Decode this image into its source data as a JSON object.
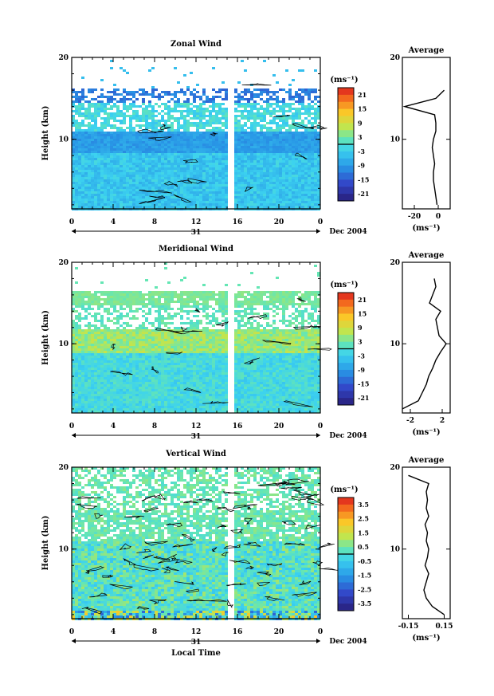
{
  "date_label": "Dec 2004",
  "day_label": "31",
  "xlabel_bottom": "Local Time",
  "chart_data": [
    {
      "type": "heatmap",
      "title": "Zonal Wind",
      "ylabel": "Height (km)",
      "xlabel": "Local Time",
      "xlim": [
        0,
        24
      ],
      "ylim": [
        1.5,
        20
      ],
      "xticks": [
        "0",
        "4",
        "8",
        "12",
        "16",
        "20",
        "0"
      ],
      "yticks": [
        "10",
        "20"
      ],
      "colorbar": {
        "unit": "(ms⁻¹)",
        "range": [
          -24,
          24
        ],
        "ticks": [
          "21",
          "15",
          "9",
          "3",
          "-3",
          "-9",
          "-15",
          "-21"
        ]
      },
      "average": {
        "title": "Average",
        "xlabel": "(ms⁻¹)",
        "xlim": [
          -30,
          10
        ],
        "xticks": [
          "-20",
          "0"
        ],
        "yticks": [
          "10",
          "20"
        ],
        "height_km": [
          2,
          3,
          4,
          5,
          6,
          7,
          8,
          9,
          10,
          11,
          12,
          13,
          14,
          15,
          16
        ],
        "values": [
          -1,
          -2,
          -3,
          -4,
          -4,
          -3,
          -4,
          -5,
          -4,
          -2,
          -2,
          -3,
          -28,
          -2,
          5
        ]
      }
    },
    {
      "type": "heatmap",
      "title": "Meridional Wind",
      "ylabel": "Height (km)",
      "xlabel": "Local Time",
      "xlim": [
        0,
        24
      ],
      "ylim": [
        1.5,
        20
      ],
      "xticks": [
        "0",
        "4",
        "8",
        "12",
        "16",
        "20",
        "0"
      ],
      "yticks": [
        "10",
        "20"
      ],
      "colorbar": {
        "unit": "(ms⁻¹)",
        "range": [
          -24,
          24
        ],
        "ticks": [
          "21",
          "15",
          "9",
          "3",
          "-3",
          "-9",
          "-15",
          "-21"
        ]
      },
      "average": {
        "title": "Average",
        "xlabel": "(ms⁻¹)",
        "xlim": [
          -3,
          3
        ],
        "xticks": [
          "-2",
          "2"
        ],
        "yticks": [
          "10",
          "20"
        ],
        "height_km": [
          2,
          3,
          4,
          5,
          6,
          7,
          8,
          9,
          10,
          11,
          12,
          13,
          14,
          15,
          16,
          17,
          18
        ],
        "values": [
          -3,
          -1,
          -0.5,
          0,
          0.3,
          0.8,
          1.2,
          1.8,
          2.5,
          1.6,
          1.4,
          1.2,
          1.8,
          0.4,
          0.8,
          1.2,
          1.0
        ]
      }
    },
    {
      "type": "heatmap",
      "title": "Vertical Wind",
      "ylabel": "Height (km)",
      "xlabel": "Local Time",
      "xlim": [
        0,
        24
      ],
      "ylim": [
        1.5,
        20
      ],
      "xticks": [
        "0",
        "4",
        "8",
        "12",
        "16",
        "20",
        "0"
      ],
      "yticks": [
        "10",
        "20"
      ],
      "colorbar": {
        "unit": "(ms⁻¹)",
        "range": [
          -4,
          4
        ],
        "ticks": [
          "3.5",
          "2.5",
          "1.5",
          "0.5",
          "-0.5",
          "-1.5",
          "-2.5",
          "-3.5"
        ]
      },
      "average": {
        "title": "Average",
        "xlabel": "(ms⁻¹)",
        "xlim": [
          -0.2,
          0.2
        ],
        "xticks": [
          "-0.15",
          "0.15"
        ],
        "yticks": [
          "10",
          "20"
        ],
        "height_km": [
          2,
          3,
          4,
          5,
          6,
          7,
          8,
          9,
          10,
          11,
          12,
          13,
          14,
          15,
          16,
          17,
          18,
          19
        ],
        "values": [
          0.15,
          0.05,
          0.0,
          -0.02,
          0.0,
          0.02,
          -0.01,
          0.01,
          0.02,
          0.0,
          0.01,
          -0.01,
          0.02,
          0.0,
          0.01,
          0.0,
          0.02,
          -0.15
        ]
      }
    }
  ]
}
